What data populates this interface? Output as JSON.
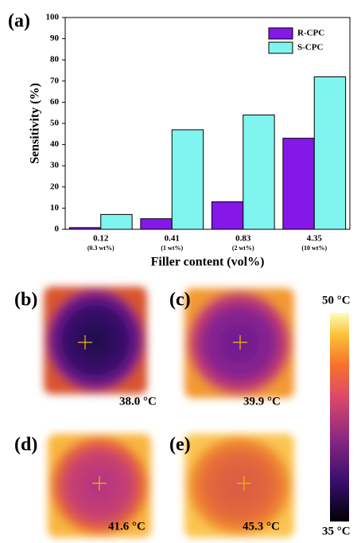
{
  "chart_data": {
    "type": "bar",
    "panel_label": "(a)",
    "x_label": "Filler content (vol%)",
    "y_label": "Sensitivity (%)",
    "categories": [
      "0.12",
      "0.41",
      "0.83",
      "4.35"
    ],
    "category_notes": [
      "(0.3 wt%)",
      "(1 wt%)",
      "(2 wt%)",
      "(10 wt%)"
    ],
    "series": [
      {
        "name": "R-CPC",
        "color": "#8418e8",
        "values": [
          0.8,
          5,
          13,
          43
        ]
      },
      {
        "name": "S-CPC",
        "color": "#80f4ee",
        "values": [
          7,
          47,
          54,
          72
        ]
      }
    ],
    "ylim": [
      0,
      100
    ],
    "yticks": [
      0,
      10,
      20,
      30,
      40,
      50,
      60,
      70,
      80,
      90,
      100
    ],
    "legend": "upper right"
  },
  "thermal_images": [
    {
      "label": "(b)",
      "temperature": "38.0 °C"
    },
    {
      "label": "(c)",
      "temperature": "39.9 °C"
    },
    {
      "label": "(d)",
      "temperature": "41.6 °C"
    },
    {
      "label": "(e)",
      "temperature": "45.3 °C"
    }
  ],
  "colorbar": {
    "max_label": "50 °C",
    "min_label": "35 °C"
  }
}
